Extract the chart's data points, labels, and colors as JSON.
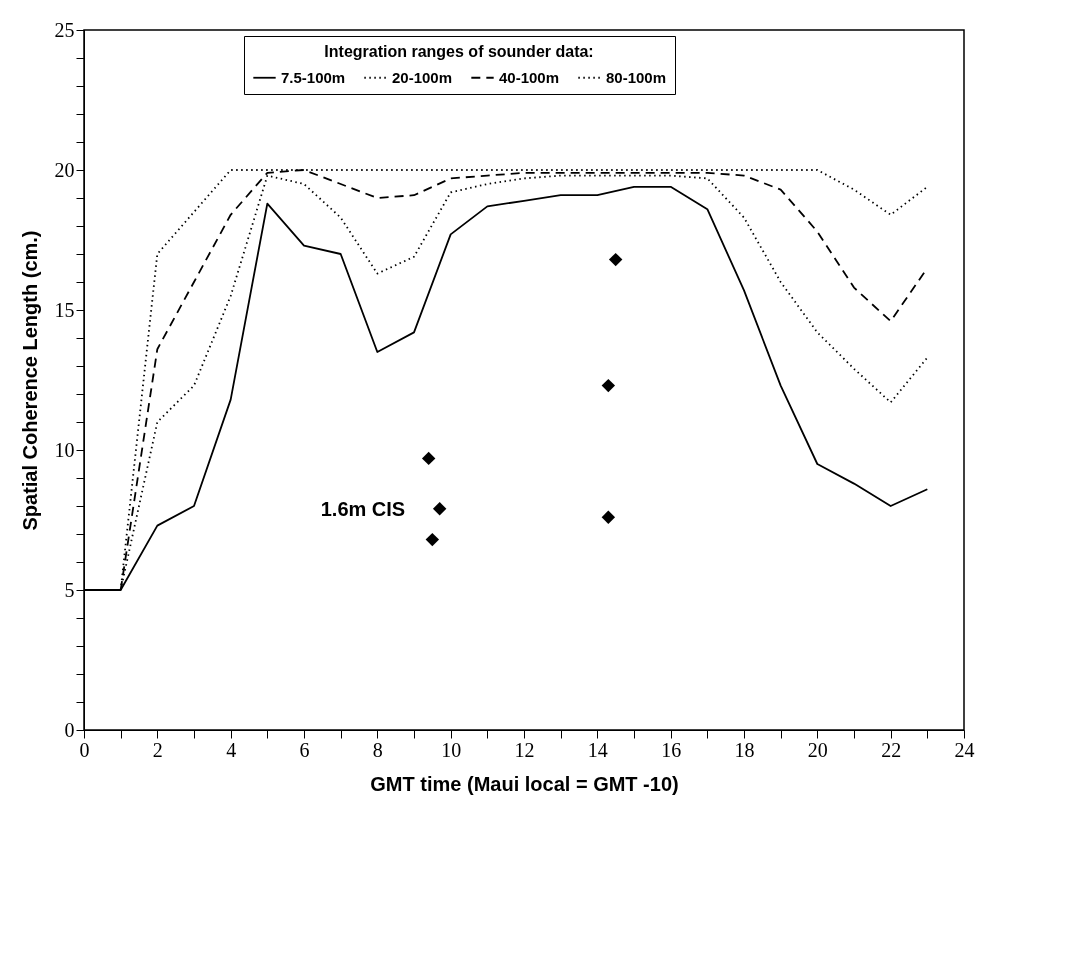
{
  "chart_data": {
    "type": "line",
    "xlabel": "GMT time (Maui local = GMT -10)",
    "ylabel": "Spatial Coherence Length (cm.)",
    "legend_title": "Integration ranges of sounder data:",
    "legend": "top",
    "grid": false,
    "marker": "none",
    "xlim": [
      0,
      24
    ],
    "ylim": [
      0,
      25
    ],
    "xticks": [
      0,
      {
        "value": 1,
        "label": null
      },
      2,
      {
        "value": 3,
        "label": null
      },
      4,
      {
        "value": 5,
        "label": null
      },
      6,
      {
        "value": 7,
        "label": null
      },
      8,
      {
        "value": 9,
        "label": null
      },
      10,
      {
        "value": 11,
        "label": null
      },
      12,
      {
        "value": 13,
        "label": null
      },
      14,
      {
        "value": 15,
        "label": null
      },
      16,
      {
        "value": 17,
        "label": null
      },
      18,
      {
        "value": 19,
        "label": null
      },
      20,
      {
        "value": 21,
        "label": null
      },
      22,
      {
        "value": 23,
        "label": null
      },
      24
    ],
    "yticks": [
      0,
      {
        "value": 1,
        "label": null
      },
      {
        "value": 2,
        "label": null
      },
      {
        "value": 3,
        "label": null
      },
      {
        "value": 4,
        "label": null
      },
      5,
      {
        "value": 6,
        "label": null
      },
      {
        "value": 7,
        "label": null
      },
      {
        "value": 8,
        "label": null
      },
      {
        "value": 9,
        "label": null
      },
      10,
      {
        "value": 11,
        "label": null
      },
      {
        "value": 12,
        "label": null
      },
      {
        "value": 13,
        "label": null
      },
      {
        "value": 14,
        "label": null
      },
      15,
      {
        "value": 16,
        "label": null
      },
      {
        "value": 17,
        "label": null
      },
      {
        "value": 18,
        "label": null
      },
      {
        "value": 19,
        "label": null
      },
      20,
      {
        "value": 21,
        "label": null
      },
      {
        "value": 22,
        "label": null
      },
      {
        "value": 23,
        "label": null
      },
      {
        "value": 24,
        "label": null
      },
      25
    ],
    "x": [
      0,
      1,
      2,
      3,
      4,
      5,
      6,
      7,
      8,
      9,
      10,
      11,
      12,
      13,
      14,
      15,
      16,
      17,
      18,
      19,
      20,
      21,
      22,
      23
    ],
    "series": [
      {
        "name": "7.5-100m",
        "color": "#000000",
        "line_style": "solid",
        "values": [
          5,
          5,
          7.3,
          8,
          11.8,
          18.8,
          17.3,
          17,
          13.5,
          14.2,
          17.7,
          18.7,
          18.9,
          19.1,
          19.1,
          19.4,
          19.4,
          18.6,
          15.7,
          12.3,
          9.5,
          8.8,
          8.0,
          8.6
        ]
      },
      {
        "name": "20-100m",
        "color": "#000000",
        "line_style": "dotted",
        "x": [
          1,
          2,
          3,
          4,
          5,
          6,
          7,
          8,
          9,
          10,
          11,
          12,
          13,
          14,
          15,
          16,
          17,
          18,
          19,
          20,
          21,
          22,
          23
        ],
        "values": [
          5,
          11.0,
          12.3,
          15.5,
          19.8,
          19.5,
          18.3,
          16.3,
          16.9,
          19.2,
          19.5,
          19.7,
          19.8,
          19.8,
          19.8,
          19.8,
          19.7,
          18.3,
          16.0,
          14.2,
          12.9,
          11.7,
          13.3
        ]
      },
      {
        "name": "40-100m",
        "color": "#000000",
        "line_style": "dashed",
        "x": [
          1,
          2,
          3,
          4,
          5,
          6,
          7,
          8,
          9,
          10,
          11,
          12,
          13,
          14,
          15,
          16,
          17,
          18,
          19,
          20,
          21,
          22,
          23
        ],
        "values": [
          5,
          13.6,
          16,
          18.4,
          19.9,
          20,
          19.5,
          19.0,
          19.1,
          19.7,
          19.8,
          19.9,
          19.9,
          19.9,
          19.9,
          19.9,
          19.9,
          19.8,
          19.3,
          17.8,
          15.8,
          14.6,
          16.5
        ]
      },
      {
        "name": "80-100m",
        "color": "#000000",
        "line_style": "dotted",
        "x": [
          1,
          2,
          3,
          4,
          5,
          6,
          7,
          8,
          9,
          10,
          11,
          12,
          13,
          14,
          15,
          16,
          17,
          18,
          19,
          20,
          21,
          22,
          23
        ],
        "values": [
          5,
          17,
          18.5,
          20,
          20,
          20,
          20,
          20,
          20,
          20,
          20,
          20,
          20,
          20,
          20,
          20,
          20,
          20,
          20,
          20,
          19.3,
          18.4,
          19.4
        ]
      },
      {
        "type": "scatter",
        "marker": "diamond",
        "color": "#000000",
        "x": [
          9.4,
          9.7,
          9.5,
          14.5,
          14.3,
          14.3
        ],
        "values": [
          9.7,
          7.9,
          6.8,
          16.8,
          12.3,
          7.6
        ]
      }
    ],
    "annotations": [
      "1.6m CIS"
    ]
  }
}
